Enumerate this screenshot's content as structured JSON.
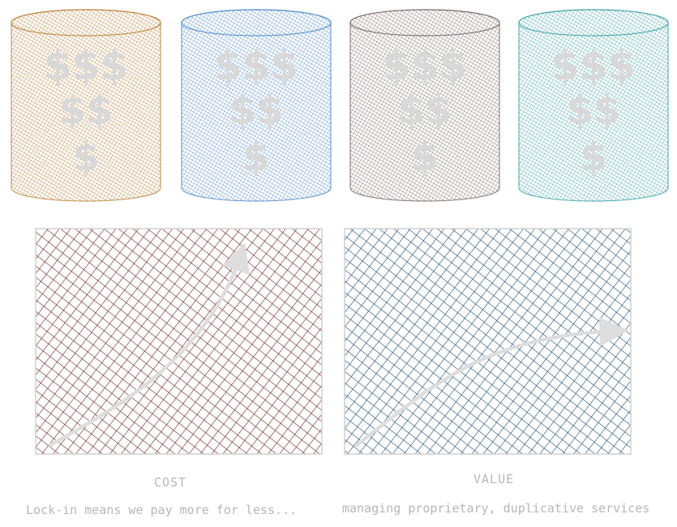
{
  "colors": {
    "barrels": [
      "#b5731f",
      "#3d7fc6",
      "#6b5a55",
      "#2c9aa0"
    ],
    "cost_chart": "#6e2a22",
    "value_chart": "#1f4f78",
    "arrow": "#dddddd",
    "dollar": "#d8d8d8",
    "caption": "#b7b7b7"
  },
  "barrels": [
    {
      "name": "barrel-1",
      "dollar_lines": [
        "$$$",
        "$$",
        "$"
      ]
    },
    {
      "name": "barrel-2",
      "dollar_lines": [
        "$$$",
        "$$",
        "$"
      ]
    },
    {
      "name": "barrel-3",
      "dollar_lines": [
        "$$$",
        "$$",
        "$"
      ]
    },
    {
      "name": "barrel-4",
      "dollar_lines": [
        "$$$",
        "$$",
        "$"
      ]
    }
  ],
  "cost": {
    "label": "COST",
    "note": "Lock-in means we pay more for less...",
    "trend": "rising-steeply"
  },
  "value": {
    "label": "VALUE",
    "note": "managing proprietary, duplicative services",
    "trend": "rising-then-flattening"
  }
}
